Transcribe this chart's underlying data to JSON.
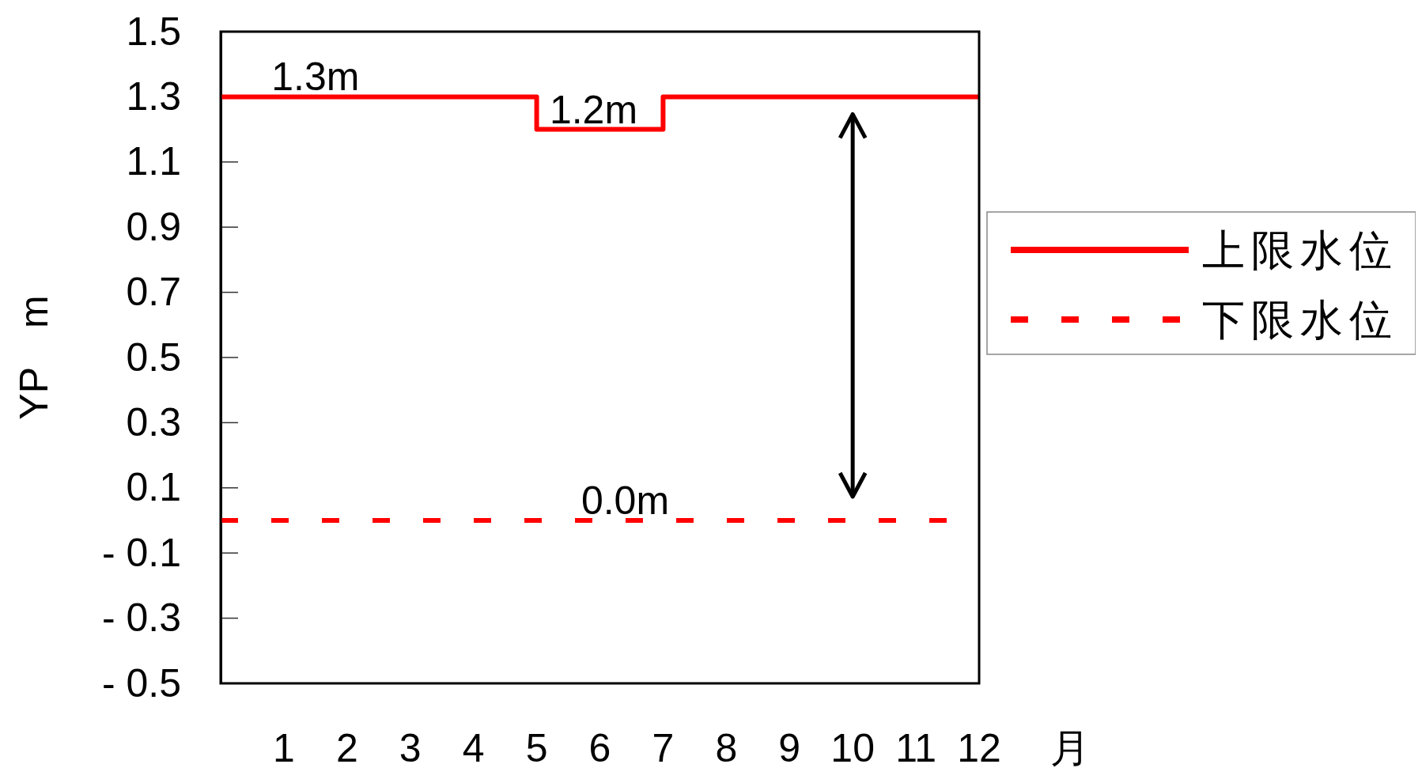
{
  "chart_data": {
    "type": "step",
    "xlabel": "月",
    "ylabel": "YP　m",
    "xlim": [
      0,
      12
    ],
    "xticks": [
      1,
      2,
      3,
      4,
      5,
      6,
      7,
      8,
      9,
      10,
      11,
      12
    ],
    "ylim": [
      -0.5,
      1.5
    ],
    "yticks": [
      1.5,
      1.3,
      1.1,
      0.9,
      0.7,
      0.5,
      0.3,
      0.1,
      {
        "value": -0.1,
        "label": "- 0.1"
      },
      {
        "value": -0.3,
        "label": "- 0.3"
      },
      {
        "value": -0.5,
        "label": "- 0.5"
      }
    ],
    "series": [
      {
        "name": "上限水位",
        "type": "step",
        "color": "#ff0000",
        "line_style": "solid",
        "x": [
          0,
          5,
          7,
          12
        ],
        "values": [
          1.3,
          1.2,
          1.3,
          1.3
        ]
      },
      {
        "name": "下限水位",
        "type": "line",
        "color": "#ff0000",
        "line_style": "dashed",
        "x": [
          0,
          11.5
        ],
        "values": [
          0,
          0
        ]
      }
    ],
    "annotations": [
      {
        "text": "1.3m",
        "x": 1.5,
        "y": 1.3
      },
      {
        "text": "1.2m",
        "x": 5.9,
        "y": 1.2
      },
      {
        "text": "0.0m",
        "x": 6.4,
        "y": 0
      }
    ],
    "grid": false,
    "legend": "right",
    "marker": "none"
  }
}
